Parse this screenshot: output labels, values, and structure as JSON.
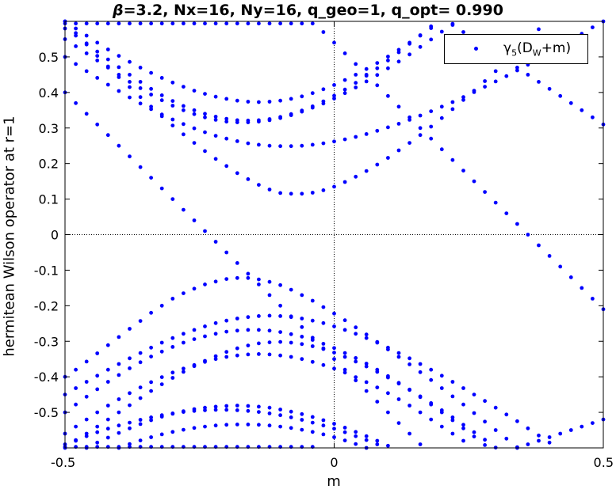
{
  "title_parts": {
    "beta": "β",
    "rest": "=3.2, Nx=16, Ny=16, q_geo=1, q_opt= 0.990"
  },
  "legend": {
    "gamma": "γ",
    "gamma_sub": "5",
    "open": "(D",
    "d_sub": "W",
    "close": "+m)"
  },
  "colors": {
    "marker": "#0000ff",
    "axis": "#000000",
    "reference_line": "#000000"
  },
  "chart_data": {
    "type": "scatter",
    "xlabel": "m",
    "ylabel": "hermitean Wilson operator at r=1",
    "xlim": [
      -0.5,
      0.5
    ],
    "ylim": [
      -0.6,
      0.6
    ],
    "xticks": [
      -0.5,
      0,
      0.5
    ],
    "xtick_labels": [
      "-0.5",
      "0",
      "0.5"
    ],
    "yticks": [
      -0.5,
      -0.4,
      -0.3,
      -0.2,
      -0.1,
      0,
      0.1,
      0.2,
      0.3,
      0.4,
      0.5
    ],
    "ytick_labels": [
      "-0.5",
      "-0.4",
      "-0.3",
      "-0.2",
      "-0.1",
      "0",
      "0.1",
      "0.2",
      "0.3",
      "0.4",
      "0.5"
    ],
    "grid": false,
    "reference_lines": [
      "x=0 dotted",
      "y=0 dotted"
    ],
    "legend_position": "top-right",
    "x": [
      -0.5,
      -0.48,
      -0.46,
      -0.44,
      -0.42,
      -0.4,
      -0.38,
      -0.36,
      -0.34,
      -0.32,
      -0.3,
      -0.28,
      -0.26,
      -0.24,
      -0.22,
      -0.2,
      -0.18,
      -0.16,
      -0.14,
      -0.12,
      -0.1,
      -0.08,
      -0.06,
      -0.04,
      -0.02,
      0,
      0.02,
      0.04,
      0.06,
      0.08,
      0.1,
      0.12,
      0.14,
      0.16,
      0.18,
      0.2,
      0.22,
      0.24,
      0.26,
      0.28,
      0.3,
      0.32,
      0.34,
      0.36,
      0.38,
      0.4,
      0.42,
      0.44,
      0.46,
      0.48,
      0.5
    ],
    "series": [
      {
        "values": [
          0.4,
          0.37,
          0.34,
          0.31,
          0.28,
          0.25,
          0.22,
          0.19,
          0.16,
          0.13,
          0.1,
          0.07,
          0.04,
          0.01,
          -0.02,
          -0.05,
          -0.08,
          -0.11,
          -0.14,
          -0.17,
          -0.2,
          -0.23,
          -0.26,
          -0.29,
          -0.32,
          -0.35,
          -0.38,
          -0.41,
          -0.44,
          -0.47,
          -0.5,
          -0.53,
          -0.56,
          -0.59,
          null,
          null,
          null,
          null,
          null,
          null,
          null,
          null,
          null,
          null,
          null,
          null,
          null,
          null,
          null,
          null,
          null
        ]
      },
      {
        "values": [
          null,
          null,
          null,
          null,
          null,
          null,
          null,
          null,
          null,
          null,
          null,
          null,
          null,
          null,
          null,
          null,
          null,
          null,
          null,
          null,
          null,
          null,
          null,
          null,
          0.57,
          0.54,
          0.51,
          0.48,
          0.45,
          0.42,
          0.39,
          0.36,
          0.33,
          0.3,
          0.27,
          0.24,
          0.21,
          0.18,
          0.15,
          0.12,
          0.09,
          0.06,
          0.03,
          0,
          -0.03,
          -0.06,
          -0.09,
          -0.12,
          -0.15,
          -0.18,
          -0.21
        ]
      },
      {
        "values": [
          0.6,
          0.567,
          0.535,
          0.503,
          0.473,
          0.443,
          0.415,
          0.387,
          0.36,
          0.333,
          0.307,
          0.282,
          0.258,
          0.235,
          0.213,
          0.193,
          0.173,
          0.156,
          0.14,
          0.127,
          0.117,
          0.115,
          0.115,
          0.118,
          0.125,
          0.135,
          0.148,
          0.163,
          0.179,
          0.197,
          0.216,
          0.237,
          0.258,
          0.28,
          0.304,
          0.328,
          0.353,
          0.379,
          0.405,
          0.432,
          0.46,
          0.489,
          0.518,
          0.548,
          0.578,
          null,
          null,
          null,
          null,
          null,
          null
        ]
      },
      {
        "values": [
          -0.4,
          -0.38,
          -0.357,
          -0.334,
          -0.311,
          -0.288,
          -0.265,
          -0.243,
          -0.22,
          -0.2,
          -0.18,
          -0.165,
          -0.152,
          -0.14,
          -0.132,
          -0.125,
          -0.122,
          -0.122,
          -0.126,
          -0.133,
          -0.142,
          -0.155,
          -0.17,
          -0.186,
          -0.204,
          -0.222,
          -0.241,
          -0.261,
          -0.281,
          -0.302,
          -0.323,
          -0.344,
          -0.365,
          -0.387,
          -0.409,
          -0.432,
          -0.455,
          -0.478,
          -0.502,
          -0.526,
          -0.55,
          -0.574,
          -0.598,
          null,
          null,
          null,
          null,
          null,
          null,
          null,
          null
        ]
      },
      {
        "values": [
          0.58,
          0.56,
          0.538,
          0.515,
          0.493,
          0.471,
          0.45,
          0.43,
          0.41,
          0.392,
          0.376,
          0.362,
          0.35,
          0.34,
          0.332,
          0.326,
          0.322,
          0.321,
          0.322,
          0.325,
          0.331,
          0.339,
          0.349,
          0.361,
          0.375,
          0.391,
          0.408,
          0.427,
          0.447,
          0.468,
          0.49,
          0.513,
          0.537,
          0.561,
          0.586,
          null,
          null,
          null,
          null,
          null,
          null,
          null,
          null,
          null,
          null,
          null,
          null,
          null,
          null,
          null,
          null
        ]
      },
      {
        "values": [
          -0.5,
          -0.478,
          -0.456,
          -0.435,
          -0.414,
          -0.395,
          -0.376,
          -0.359,
          -0.343,
          -0.329,
          -0.316,
          -0.304,
          -0.294,
          -0.286,
          -0.279,
          -0.273,
          -0.27,
          -0.268,
          -0.268,
          -0.27,
          -0.274,
          -0.28,
          -0.287,
          -0.296,
          -0.307,
          -0.319,
          -0.333,
          -0.347,
          -0.363,
          -0.38,
          -0.398,
          -0.417,
          -0.436,
          -0.457,
          -0.478,
          -0.5,
          -0.522,
          -0.545,
          -0.568,
          -0.592,
          null,
          null,
          null,
          null,
          null,
          null,
          null,
          null,
          null,
          null,
          null
        ]
      },
      {
        "values": [
          0.55,
          0.53,
          0.51,
          0.49,
          0.47,
          0.45,
          0.43,
          0.412,
          0.394,
          0.378,
          0.363,
          0.35,
          0.339,
          0.33,
          0.323,
          0.318,
          0.316,
          0.316,
          0.318,
          0.322,
          0.328,
          0.336,
          0.346,
          0.357,
          0.369,
          0.383,
          0.398,
          0.414,
          0.431,
          0.449,
          0.468,
          0.487,
          0.507,
          0.528,
          0.549,
          0.571,
          0.593,
          null,
          null,
          null,
          null,
          null,
          null,
          null,
          null,
          null,
          null,
          null,
          null,
          null,
          null
        ]
      },
      {
        "values": [
          -0.6,
          -0.58,
          -0.56,
          -0.54,
          -0.52,
          -0.5,
          -0.48,
          -0.46,
          -0.44,
          -0.421,
          -0.403,
          -0.386,
          -0.37,
          -0.355,
          -0.342,
          -0.33,
          -0.32,
          -0.312,
          -0.306,
          -0.303,
          -0.302,
          -0.304,
          -0.308,
          -0.314,
          -0.322,
          -0.332,
          -0.344,
          -0.357,
          -0.371,
          -0.386,
          -0.402,
          -0.419,
          -0.437,
          -0.455,
          -0.474,
          -0.494,
          -0.514,
          -0.535,
          -0.556,
          -0.577,
          -0.599,
          null,
          null,
          null,
          null,
          null,
          null,
          null,
          null,
          null,
          null
        ]
      },
      {
        "values": [
          0.5,
          0.48,
          0.46,
          0.441,
          0.422,
          0.404,
          0.386,
          0.369,
          0.353,
          0.338,
          0.324,
          0.311,
          0.299,
          0.288,
          0.278,
          0.27,
          0.263,
          0.257,
          0.253,
          0.25,
          0.249,
          0.249,
          0.25,
          0.253,
          0.257,
          0.262,
          0.268,
          0.275,
          0.283,
          0.292,
          0.302,
          0.312,
          0.323,
          0.335,
          0.347,
          0.36,
          0.373,
          0.387,
          0.401,
          0.416,
          0.431,
          0.446,
          0.462,
          0.478,
          0.495,
          0.512,
          0.529,
          0.547,
          0.565,
          0.583,
          0.6
        ]
      },
      {
        "values": [
          -0.45,
          -0.432,
          -0.414,
          -0.397,
          -0.38,
          -0.364,
          -0.348,
          -0.333,
          -0.318,
          -0.304,
          -0.291,
          -0.279,
          -0.268,
          -0.258,
          -0.249,
          -0.242,
          -0.236,
          -0.232,
          -0.229,
          -0.228,
          -0.229,
          -0.232,
          -0.236,
          -0.242,
          -0.249,
          -0.258,
          -0.268,
          -0.279,
          -0.291,
          -0.304,
          -0.318,
          -0.333,
          -0.348,
          -0.364,
          -0.38,
          -0.397,
          -0.414,
          -0.432,
          -0.45,
          -0.468,
          -0.487,
          -0.506,
          -0.525,
          -0.545,
          -0.565,
          -0.585,
          null,
          null,
          null,
          null,
          null
        ]
      },
      {
        "values": [
          0.6,
          0.58,
          0.56,
          0.54,
          0.521,
          0.503,
          0.486,
          0.47,
          0.455,
          0.441,
          0.428,
          0.416,
          0.405,
          0.396,
          0.388,
          0.382,
          0.377,
          0.374,
          0.373,
          0.374,
          0.377,
          0.382,
          0.389,
          0.398,
          0.409,
          0.421,
          0.435,
          0.45,
          0.466,
          0.483,
          0.501,
          0.52,
          0.54,
          0.56,
          0.581,
          null,
          null,
          null,
          null,
          null,
          null,
          null,
          null,
          null,
          null,
          null,
          null,
          null,
          null,
          null,
          null
        ]
      },
      {
        "values": [
          -0.56,
          -0.54,
          -0.52,
          -0.5,
          -0.481,
          -0.463,
          -0.446,
          -0.43,
          -0.415,
          -0.401,
          -0.388,
          -0.377,
          -0.367,
          -0.358,
          -0.35,
          -0.344,
          -0.34,
          -0.337,
          -0.336,
          -0.337,
          -0.34,
          -0.344,
          -0.35,
          -0.358,
          -0.367,
          -0.377,
          -0.388,
          -0.401,
          -0.415,
          -0.43,
          -0.446,
          -0.463,
          -0.481,
          -0.5,
          -0.52,
          -0.54,
          -0.56,
          -0.58,
          null,
          null,
          null,
          null,
          null,
          null,
          null,
          null,
          null,
          null,
          null,
          null,
          null
        ]
      },
      {
        "values": [
          null,
          null,
          -0.6,
          -0.585,
          -0.571,
          -0.558,
          -0.545,
          -0.533,
          -0.522,
          -0.512,
          -0.504,
          -0.497,
          -0.491,
          -0.487,
          -0.484,
          -0.482,
          -0.481,
          -0.482,
          -0.484,
          -0.487,
          -0.492,
          -0.498,
          -0.505,
          -0.513,
          -0.522,
          -0.532,
          -0.543,
          -0.555,
          -0.567,
          -0.58,
          -0.594,
          null,
          null,
          null,
          null,
          null,
          null,
          null,
          null,
          null,
          null,
          null,
          null,
          null,
          null,
          null,
          null,
          null,
          null,
          null,
          null
        ]
      },
      {
        "values": [
          null,
          null,
          null,
          null,
          null,
          -0.6,
          -0.589,
          -0.579,
          -0.57,
          -0.562,
          -0.555,
          -0.549,
          -0.544,
          -0.54,
          -0.537,
          -0.535,
          -0.534,
          -0.534,
          -0.535,
          -0.537,
          -0.54,
          -0.544,
          -0.549,
          -0.555,
          -0.562,
          -0.57,
          -0.579,
          -0.589,
          -0.6,
          null,
          null,
          null,
          null,
          null,
          null,
          null,
          null,
          null,
          null,
          null,
          null,
          null,
          null,
          null,
          null,
          null,
          null,
          null,
          null,
          null,
          null
        ]
      },
      {
        "values": [
          -0.59,
          -0.578,
          -0.567,
          -0.556,
          -0.546,
          -0.537,
          -0.529,
          -0.521,
          -0.514,
          -0.508,
          -0.503,
          -0.499,
          -0.496,
          -0.494,
          -0.493,
          -0.493,
          -0.494,
          -0.496,
          -0.499,
          -0.503,
          -0.508,
          -0.514,
          -0.521,
          -0.529,
          -0.537,
          -0.546,
          -0.556,
          -0.567,
          -0.578,
          -0.59,
          null,
          null,
          null,
          null,
          null,
          null,
          null,
          null,
          null,
          null,
          null,
          null,
          null,
          null,
          null,
          null,
          null,
          null,
          null,
          null,
          null
        ]
      },
      {
        "values": [
          0.594,
          0.594,
          0.594,
          0.594,
          0.594,
          0.594,
          0.594,
          0.594,
          0.594,
          0.594,
          0.594,
          0.594,
          0.594,
          0.594,
          0.594,
          0.594,
          0.594,
          0.594,
          0.594,
          0.594,
          0.594,
          0.594,
          0.594,
          0.594,
          null,
          null,
          null,
          null,
          null,
          null,
          null,
          null,
          null,
          null,
          null,
          null,
          null,
          null,
          null,
          null,
          null,
          null,
          null,
          null,
          null,
          null,
          null,
          null,
          null,
          null,
          null
        ]
      },
      {
        "values": [
          -0.597,
          -0.597,
          -0.597,
          -0.597,
          -0.597,
          -0.597,
          -0.597,
          -0.597,
          -0.597,
          -0.597,
          -0.597,
          -0.597,
          -0.597,
          -0.597,
          -0.597,
          -0.597,
          -0.597,
          -0.597,
          -0.597,
          -0.597,
          -0.597,
          -0.597,
          -0.597,
          -0.597,
          null,
          null,
          null,
          null,
          null,
          null,
          null,
          null,
          null,
          null,
          null,
          null,
          null,
          null,
          null,
          null,
          null,
          null,
          null,
          null,
          null,
          null,
          null,
          null,
          null,
          null,
          null
        ]
      },
      {
        "values": [
          null,
          null,
          null,
          null,
          null,
          null,
          null,
          null,
          null,
          null,
          null,
          null,
          null,
          null,
          null,
          null,
          null,
          null,
          null,
          null,
          null,
          null,
          null,
          null,
          null,
          null,
          null,
          null,
          null,
          null,
          null,
          null,
          null,
          null,
          null,
          null,
          0.59,
          0.57,
          0.55,
          0.53,
          0.51,
          0.49,
          0.47,
          0.45,
          0.43,
          0.41,
          0.39,
          0.37,
          0.35,
          0.33,
          0.31
        ]
      },
      {
        "values": [
          null,
          null,
          null,
          null,
          null,
          null,
          null,
          null,
          null,
          null,
          null,
          null,
          null,
          null,
          null,
          null,
          null,
          null,
          null,
          null,
          null,
          null,
          null,
          null,
          null,
          null,
          null,
          null,
          null,
          null,
          null,
          null,
          null,
          null,
          null,
          null,
          null,
          null,
          null,
          null,
          null,
          null,
          -0.6,
          -0.59,
          -0.58,
          -0.57,
          -0.56,
          -0.55,
          -0.54,
          -0.53,
          -0.52
        ]
      }
    ]
  }
}
